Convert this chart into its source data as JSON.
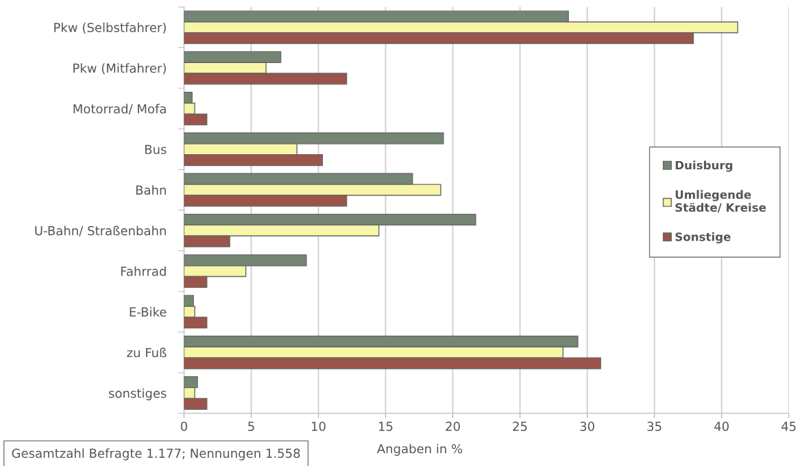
{
  "chart_data": {
    "type": "bar",
    "orientation": "horizontal",
    "categories": [
      "Pkw (Selbstfahrer)",
      "Pkw (Mitfahrer)",
      "Motorrad/ Mofa",
      "Bus",
      "Bahn",
      "U-Bahn/ Straßenbahn",
      "Fahrrad",
      "E-Bike",
      "zu Fuß",
      "sonstiges"
    ],
    "series": [
      {
        "name": "Duisburg",
        "color": "#748673",
        "values": [
          28.6,
          7.2,
          0.6,
          19.3,
          17.0,
          21.7,
          9.1,
          0.7,
          29.3,
          1.0
        ]
      },
      {
        "name": "Umliegende\nStädte/ Kreise",
        "color": "#f7f5a6",
        "values": [
          41.2,
          6.1,
          0.8,
          8.4,
          19.1,
          14.5,
          4.6,
          0.8,
          28.2,
          0.8
        ]
      },
      {
        "name": "Sonstige",
        "color": "#9b5449",
        "values": [
          37.9,
          12.1,
          1.7,
          10.3,
          12.1,
          3.4,
          1.7,
          1.7,
          31.0,
          1.7
        ]
      }
    ],
    "xlim": [
      0,
      45
    ],
    "xticks": [
      0,
      5,
      10,
      15,
      20,
      25,
      30,
      35,
      40,
      45
    ],
    "xlabel": "Angaben in %",
    "annotations": [
      "Gesamtzahl Befragte 1.177; Nennungen 1.558"
    ],
    "grid": "x",
    "legend": "right"
  }
}
